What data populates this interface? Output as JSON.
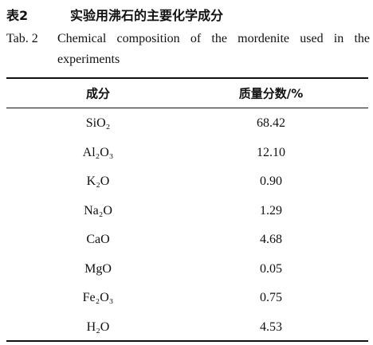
{
  "header": {
    "label": "表2",
    "title": "实验用沸石的主要化学成分"
  },
  "caption": {
    "label": "Tab. 2",
    "text": "Chemical composition of the mordenite used in the experiments"
  },
  "table": {
    "columns": [
      "成分",
      "质量分数/%"
    ],
    "rows": [
      [
        "SiO₂",
        "68.42"
      ],
      [
        "Al₂O₃",
        "12.10"
      ],
      [
        "K₂O",
        "0.90"
      ],
      [
        "Na₂O",
        "1.29"
      ],
      [
        "CaO",
        "4.68"
      ],
      [
        "MgO",
        "0.05"
      ],
      [
        "Fe₂O₃",
        "0.75"
      ],
      [
        "H₂O",
        "4.53"
      ]
    ]
  }
}
